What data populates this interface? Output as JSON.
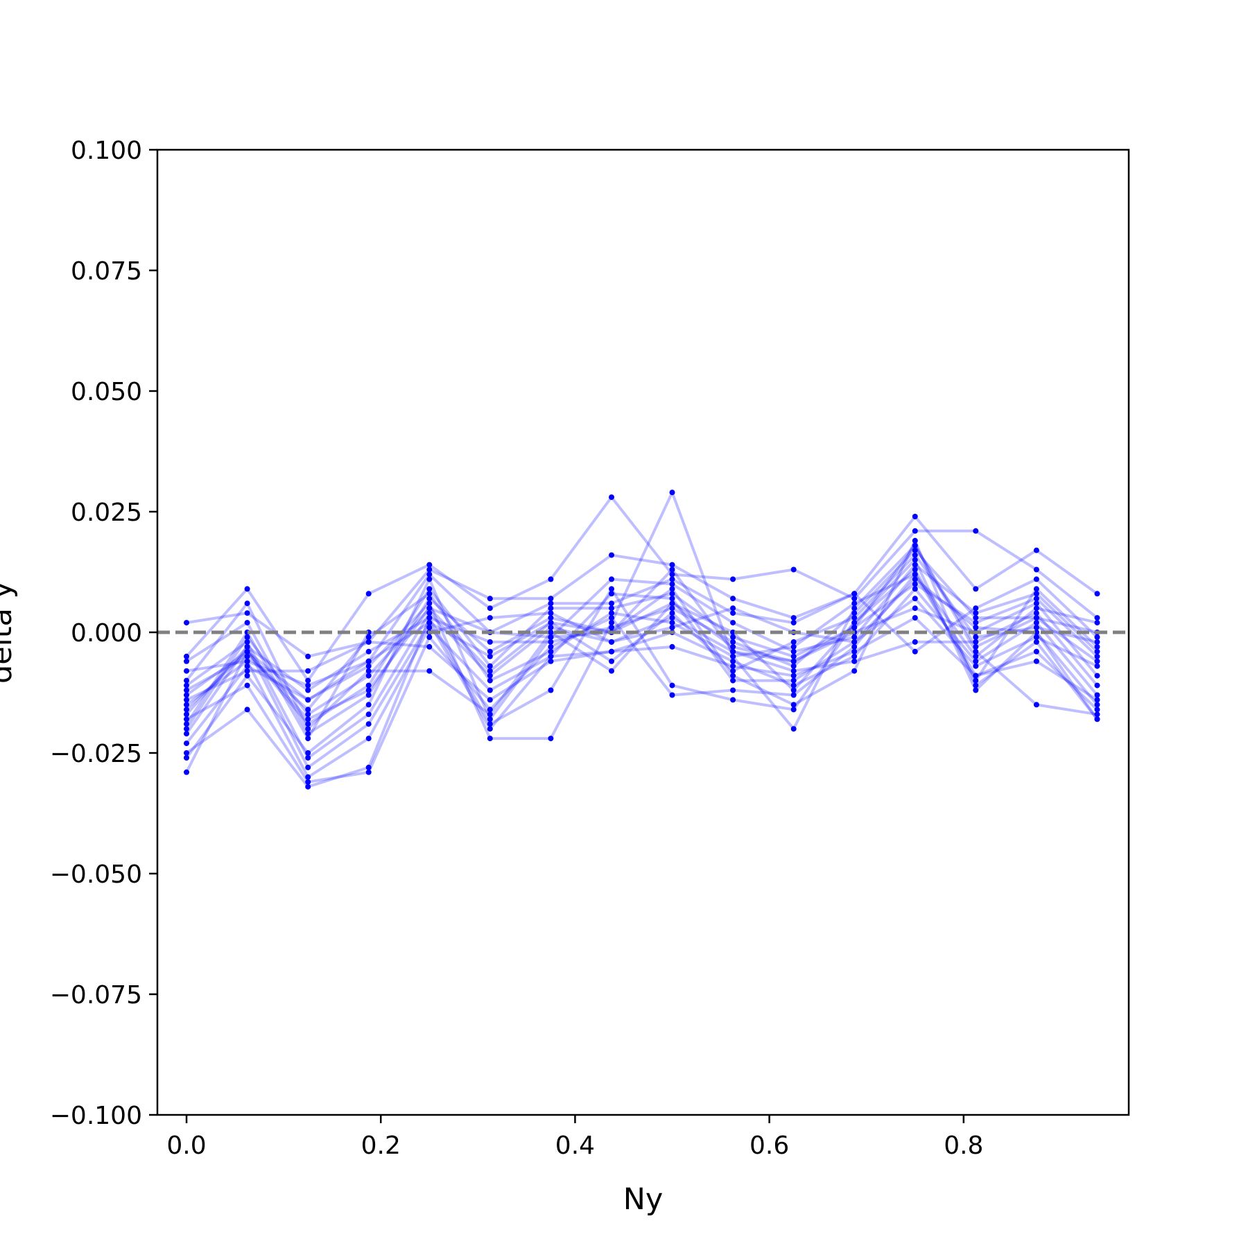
{
  "chart_data": {
    "type": "line",
    "title": "",
    "xlabel": "Ny",
    "ylabel": "delta y",
    "xlim": [
      -0.03,
      0.97
    ],
    "ylim": [
      -0.1,
      0.1
    ],
    "x_ticks": [
      0.0,
      0.2,
      0.4,
      0.6,
      0.8
    ],
    "x_tick_labels": [
      "0.0",
      "0.2",
      "0.4",
      "0.6",
      "0.8"
    ],
    "y_ticks": [
      0.1,
      0.075,
      0.05,
      0.025,
      0.0,
      -0.025,
      -0.05,
      -0.075,
      -0.1
    ],
    "y_tick_labels": [
      "0.100",
      "0.075",
      "0.050",
      "0.025",
      "0.000",
      "−0.025",
      "−0.050",
      "−0.075",
      "−0.100"
    ],
    "grid": false,
    "line_color": "#0000ff",
    "line_opacity": 0.25,
    "marker_color": "#0000ff",
    "reference_line": {
      "y": 0.0,
      "style": "dashed",
      "color": "#808080"
    },
    "x": [
      0.0,
      0.0625,
      0.125,
      0.1875,
      0.25,
      0.3125,
      0.375,
      0.4375,
      0.5,
      0.5625,
      0.625,
      0.6875,
      0.75,
      0.8125,
      0.875,
      0.9375
    ],
    "series": [
      {
        "values": [
          0.002,
          0.004,
          -0.005,
          -0.002,
          0.013,
          0.007,
          0.007,
          0.016,
          0.014,
          0.007,
          0.003,
          0.008,
          0.024,
          0.009,
          0.017,
          0.008
        ]
      },
      {
        "values": [
          -0.005,
          0.009,
          -0.01,
          0.008,
          0.014,
          0.005,
          0.011,
          0.028,
          0.012,
          0.011,
          0.013,
          0.007,
          0.021,
          0.021,
          0.013,
          0.003
        ]
      },
      {
        "values": [
          -0.029,
          -0.004,
          -0.014,
          -0.007,
          0.006,
          -0.022,
          -0.022,
          0.002,
          0.029,
          -0.005,
          -0.02,
          0.005,
          0.018,
          -0.004,
          -0.015,
          -0.017
        ]
      },
      {
        "values": [
          -0.025,
          -0.016,
          -0.032,
          -0.028,
          0.003,
          -0.019,
          -0.012,
          0.009,
          -0.011,
          -0.014,
          -0.016,
          0.002,
          0.015,
          -0.012,
          0.0,
          -0.018
        ]
      },
      {
        "values": [
          -0.018,
          -0.011,
          -0.031,
          -0.029,
          -0.001,
          -0.016,
          -0.003,
          0.003,
          -0.013,
          -0.012,
          -0.013,
          -0.003,
          0.012,
          -0.009,
          -0.004,
          -0.016
        ]
      },
      {
        "values": [
          -0.015,
          -0.006,
          -0.03,
          -0.022,
          0.001,
          -0.012,
          -0.005,
          -0.004,
          0.0,
          -0.006,
          -0.011,
          -0.005,
          0.009,
          -0.006,
          0.002,
          -0.013
        ]
      },
      {
        "values": [
          -0.011,
          -0.002,
          -0.026,
          -0.017,
          0.004,
          -0.009,
          0.001,
          -0.002,
          0.003,
          -0.004,
          -0.008,
          -0.006,
          -0.002,
          -0.002,
          0.004,
          -0.011
        ]
      },
      {
        "values": [
          -0.006,
          0.002,
          -0.021,
          -0.013,
          0.007,
          -0.004,
          0.003,
          0.0,
          0.006,
          -0.003,
          -0.006,
          0.0,
          0.005,
          0.0,
          0.006,
          -0.009
        ]
      },
      {
        "values": [
          -0.013,
          -0.004,
          -0.019,
          -0.011,
          0.009,
          -0.007,
          0.005,
          0.005,
          0.008,
          -0.001,
          -0.005,
          0.001,
          0.01,
          0.002,
          0.007,
          -0.005
        ]
      },
      {
        "values": [
          -0.02,
          -0.001,
          -0.017,
          -0.009,
          0.005,
          0.0,
          -0.001,
          0.011,
          0.01,
          0.002,
          -0.004,
          -0.001,
          0.014,
          0.004,
          0.008,
          -0.004
        ]
      },
      {
        "values": [
          -0.023,
          -0.007,
          -0.014,
          -0.006,
          0.002,
          -0.005,
          0.002,
          -0.006,
          0.004,
          -0.008,
          -0.002,
          0.003,
          0.016,
          -0.001,
          0.001,
          -0.002
        ]
      },
      {
        "values": [
          -0.017,
          -0.003,
          -0.012,
          -0.004,
          0.003,
          -0.002,
          -0.002,
          0.001,
          0.005,
          -0.002,
          -0.007,
          0.004,
          0.017,
          0.003,
          0.003,
          0.0
        ]
      },
      {
        "values": [
          -0.012,
          -0.005,
          -0.016,
          -0.001,
          0.008,
          -0.01,
          -0.004,
          0.004,
          0.002,
          -0.005,
          -0.003,
          0.006,
          0.012,
          -0.005,
          0.005,
          0.002
        ]
      },
      {
        "values": [
          -0.019,
          0.0,
          -0.022,
          0.0,
          0.0,
          0.003,
          0.004,
          -0.002,
          0.001,
          0.005,
          0.0,
          -0.002,
          0.007,
          -0.007,
          -0.001,
          -0.007
        ]
      },
      {
        "values": [
          -0.014,
          -0.008,
          -0.008,
          -0.002,
          -0.003,
          -0.014,
          -0.006,
          -0.004,
          -0.003,
          -0.007,
          -0.009,
          -0.004,
          0.003,
          -0.009,
          -0.006,
          -0.014
        ]
      },
      {
        "values": [
          -0.01,
          0.006,
          -0.02,
          -0.008,
          -0.008,
          -0.017,
          0.0,
          -0.008,
          0.006,
          0.0,
          -0.012,
          0.002,
          0.013,
          -0.01,
          0.009,
          -0.003
        ]
      },
      {
        "values": [
          -0.026,
          -0.009,
          -0.025,
          -0.015,
          0.011,
          -0.018,
          -0.001,
          0.0,
          0.009,
          -0.009,
          -0.015,
          -0.008,
          0.019,
          -0.011,
          -0.002,
          -0.018
        ]
      },
      {
        "values": [
          -0.008,
          -0.006,
          -0.011,
          -0.006,
          0.012,
          0.0,
          0.006,
          0.006,
          0.011,
          0.004,
          0.002,
          0.008,
          -0.004,
          0.005,
          0.011,
          -0.001
        ]
      },
      {
        "values": [
          -0.021,
          -0.003,
          -0.028,
          -0.019,
          0.002,
          -0.02,
          -0.005,
          0.008,
          0.007,
          -0.01,
          -0.01,
          -0.002,
          0.011,
          0.001,
          0.0,
          -0.015
        ]
      },
      {
        "values": [
          -0.016,
          -0.004,
          -0.018,
          -0.012,
          0.005,
          -0.008,
          0.002,
          0.0,
          0.013,
          -0.004,
          -0.006,
          0.001,
          0.018,
          -0.003,
          0.003,
          -0.006
        ]
      }
    ]
  }
}
